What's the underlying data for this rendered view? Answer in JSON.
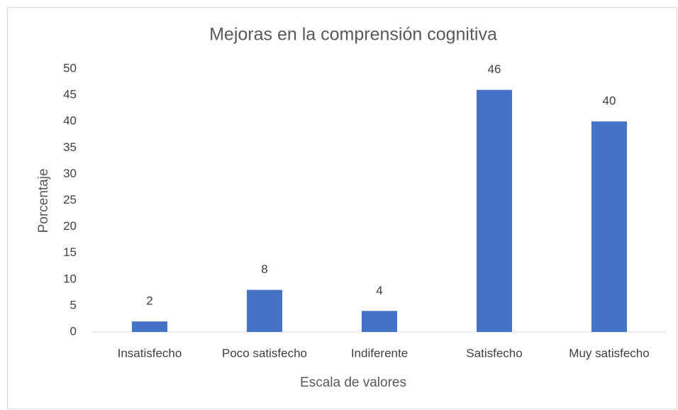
{
  "chart_data": {
    "type": "bar",
    "title": "Mejoras en la comprensión cognitiva",
    "x_label": "Escala de valores",
    "y_label": "Porcentaje",
    "categories": [
      "Insatisfecho",
      "Poco satisfecho",
      "Indiferente",
      "Satisfecho",
      "Muy satisfecho"
    ],
    "values": [
      2,
      8,
      4,
      46,
      40
    ],
    "color": "#4472c4",
    "ylim": [
      0,
      50
    ],
    "yticks": [
      0,
      5,
      10,
      15,
      20,
      25,
      30,
      35,
      40,
      45,
      50
    ],
    "grid": false
  }
}
